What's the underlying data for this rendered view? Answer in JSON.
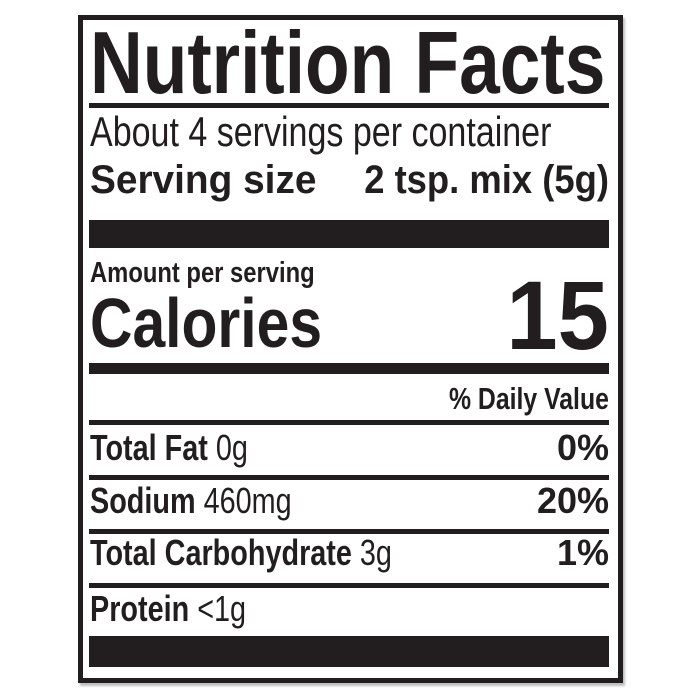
{
  "colors": {
    "ink": "#221e1f",
    "background": "#ffffff"
  },
  "label": {
    "title": "Nutrition Facts",
    "servings_per_container": "About 4 servings per container",
    "serving_size": {
      "label": "Serving size",
      "value": "2 tsp. mix (5g)"
    },
    "amount_per_serving": "Amount per serving",
    "calories": {
      "label": "Calories",
      "value": "15"
    },
    "daily_value_header": "% Daily Value",
    "nutrients": [
      {
        "name": "Total Fat",
        "amount": "0g",
        "daily_value": "0%"
      },
      {
        "name": "Sodium",
        "amount": "460mg",
        "daily_value": "20%"
      },
      {
        "name": "Total Carbohydrate",
        "amount": "3g",
        "daily_value": "1%"
      },
      {
        "name": "Protein",
        "amount": "<1g",
        "daily_value": ""
      }
    ]
  }
}
